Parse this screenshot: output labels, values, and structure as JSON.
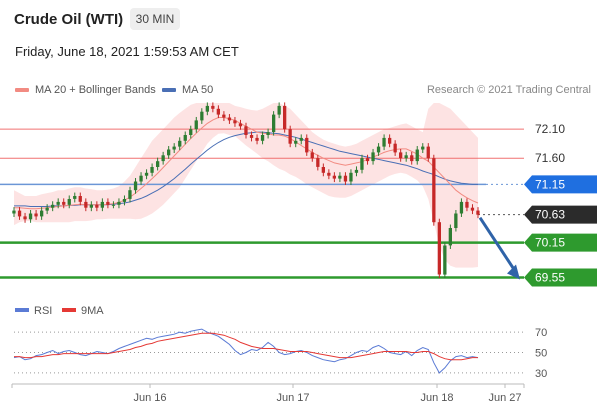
{
  "header": {
    "instrument": "Crude Oil (WTI)",
    "timeframe": "30 MIN",
    "datetime": "Friday, June 18, 2021 1:59:53 AM CET",
    "credit": "Research © 2021 Trading Central"
  },
  "legend": {
    "ma20_label": "MA 20 + Bollinger Bands",
    "ma50_label": "MA 50",
    "rsi_label": "RSI",
    "ma9_label": "9MA"
  },
  "colors": {
    "up": "#2e7d32",
    "down": "#c62828",
    "ma20": "#f28b82",
    "band_fill": "#fde3e3",
    "ma50": "#4a6fb5",
    "red_level": "#f07070",
    "blue_level": "#6b96d6",
    "green_level": "#2e9a2e",
    "arrow": "#2f63a8",
    "rsi": "#5b7bd5",
    "rsi_ma": "#e53935"
  },
  "chart_data": [
    {
      "type": "candlestick",
      "title": "Crude Oil (WTI)",
      "timeframe": "30 MIN",
      "ylim": [
        69.3,
        72.55
      ],
      "x_labels": [
        "Jun 16",
        "Jun 17",
        "Jun 18",
        "Jun 27"
      ],
      "levels": [
        {
          "label": "72.10",
          "value": 72.1,
          "kind": "resistance"
        },
        {
          "label": "71.60",
          "value": 71.6,
          "kind": "resistance"
        },
        {
          "label": "71.15",
          "value": 71.15,
          "kind": "pivot"
        },
        {
          "label": "70.63",
          "value": 70.63,
          "kind": "last"
        },
        {
          "label": "70.15",
          "value": 70.15,
          "kind": "support"
        },
        {
          "label": "69.55",
          "value": 69.55,
          "kind": "support"
        }
      ],
      "close_series": [
        70.7,
        70.6,
        70.55,
        70.65,
        70.6,
        70.7,
        70.75,
        70.8,
        70.85,
        70.8,
        70.9,
        70.95,
        70.85,
        70.75,
        70.8,
        70.75,
        70.85,
        70.8,
        70.8,
        70.85,
        70.9,
        71.05,
        71.2,
        71.3,
        71.35,
        71.45,
        71.55,
        71.65,
        71.75,
        71.8,
        71.9,
        72.0,
        72.1,
        72.25,
        72.4,
        72.5,
        72.45,
        72.35,
        72.3,
        72.25,
        72.2,
        72.15,
        72.0,
        71.95,
        71.9,
        72.0,
        72.05,
        72.35,
        72.5,
        72.1,
        71.85,
        71.9,
        71.95,
        71.7,
        71.6,
        71.45,
        71.35,
        71.3,
        71.25,
        71.3,
        71.2,
        71.35,
        71.4,
        71.6,
        71.55,
        71.7,
        71.8,
        71.95,
        71.85,
        71.7,
        71.6,
        71.65,
        71.55,
        71.75,
        71.8,
        71.6,
        70.5,
        69.6,
        70.1,
        70.4,
        70.65,
        70.85,
        70.75,
        70.7,
        70.63
      ],
      "ma20_series": [
        70.75,
        70.75,
        70.74,
        70.73,
        70.73,
        70.74,
        70.75,
        70.76,
        70.77,
        70.78,
        70.79,
        70.8,
        70.81,
        70.8,
        70.8,
        70.8,
        70.8,
        70.81,
        70.82,
        70.84,
        70.88,
        70.93,
        71.0,
        71.08,
        71.16,
        71.25,
        71.34,
        71.44,
        71.54,
        71.64,
        71.74,
        71.84,
        71.94,
        72.03,
        72.12,
        72.2,
        72.26,
        72.3,
        72.3,
        72.28,
        72.25,
        72.2,
        72.15,
        72.1,
        72.05,
        72.03,
        72.02,
        72.0,
        72.0,
        71.98,
        71.94,
        71.88,
        71.82,
        71.76,
        71.7,
        71.65,
        71.6,
        71.56,
        71.52,
        71.5,
        71.48,
        71.5,
        71.52,
        71.54,
        71.58,
        71.62,
        71.66,
        71.7,
        71.73,
        71.75,
        71.76,
        71.76,
        71.72,
        71.67,
        71.6,
        71.55,
        71.45,
        71.35,
        71.25,
        71.15,
        71.05,
        70.98,
        70.92,
        70.87,
        70.83
      ],
      "ma50_series": [
        70.78,
        70.78,
        70.78,
        70.77,
        70.77,
        70.77,
        70.77,
        70.78,
        70.78,
        70.78,
        70.79,
        70.79,
        70.8,
        70.8,
        70.8,
        70.8,
        70.8,
        70.8,
        70.81,
        70.82,
        70.83,
        70.85,
        70.88,
        70.91,
        70.95,
        71.0,
        71.05,
        71.11,
        71.18,
        71.25,
        71.33,
        71.41,
        71.5,
        71.58,
        71.66,
        71.74,
        71.81,
        71.87,
        71.92,
        71.96,
        71.99,
        72.01,
        72.03,
        72.04,
        72.05,
        72.05,
        72.04,
        72.03,
        72.02,
        72.0,
        71.98,
        71.96,
        71.93,
        71.9,
        71.87,
        71.84,
        71.81,
        71.78,
        71.75,
        71.72,
        71.7,
        71.68,
        71.66,
        71.64,
        71.62,
        71.6,
        71.58,
        71.56,
        71.54,
        71.52,
        71.5,
        71.48,
        71.45,
        71.42,
        71.38,
        71.35,
        71.32,
        71.28,
        71.24,
        71.21,
        71.19,
        71.17,
        71.16,
        71.15,
        71.15
      ],
      "band_upper": [
        71.05,
        71.0,
        70.95,
        70.95,
        70.95,
        70.98,
        71.0,
        71.02,
        71.05,
        71.05,
        71.08,
        71.1,
        71.1,
        71.08,
        71.07,
        71.05,
        71.05,
        71.06,
        71.08,
        71.12,
        71.2,
        71.3,
        71.45,
        71.6,
        71.75,
        71.9,
        72.0,
        72.1,
        72.2,
        72.3,
        72.38,
        72.45,
        72.52,
        72.55,
        72.55,
        72.55,
        72.55,
        72.55,
        72.55,
        72.55,
        72.5,
        72.48,
        72.45,
        72.43,
        72.42,
        72.45,
        72.5,
        72.55,
        72.55,
        72.5,
        72.45,
        72.35,
        72.25,
        72.15,
        72.05,
        71.98,
        71.92,
        71.88,
        71.85,
        71.82,
        71.8,
        71.82,
        71.85,
        71.9,
        71.95,
        72.0,
        72.05,
        72.1,
        72.12,
        72.15,
        72.18,
        72.2,
        72.15,
        72.1,
        72.05,
        72.45,
        72.55,
        72.55,
        72.5,
        72.45,
        72.35,
        72.25,
        72.15,
        72.05,
        71.95
      ],
      "band_lower": [
        70.45,
        70.5,
        70.52,
        70.52,
        70.5,
        70.5,
        70.5,
        70.5,
        70.5,
        70.5,
        70.5,
        70.52,
        70.52,
        70.52,
        70.53,
        70.55,
        70.55,
        70.56,
        70.56,
        70.56,
        70.56,
        70.56,
        70.55,
        70.56,
        70.6,
        70.65,
        70.72,
        70.8,
        70.9,
        71.0,
        71.1,
        71.25,
        71.4,
        71.55,
        71.7,
        71.85,
        71.95,
        72.02,
        72.03,
        72.0,
        71.98,
        71.9,
        71.82,
        71.75,
        71.68,
        71.6,
        71.55,
        71.48,
        71.42,
        71.38,
        71.32,
        71.28,
        71.22,
        71.15,
        71.1,
        71.05,
        71.0,
        70.95,
        70.93,
        70.92,
        70.92,
        70.95,
        71.0,
        71.05,
        71.1,
        71.15,
        71.2,
        71.25,
        71.3,
        71.33,
        71.35,
        71.33,
        71.28,
        71.22,
        71.12,
        70.9,
        70.5,
        70.1,
        69.85,
        69.75,
        69.72,
        69.72,
        69.72,
        69.72,
        69.73
      ]
    },
    {
      "type": "line",
      "title": "RSI",
      "ylim": [
        25,
        80
      ],
      "y_ticks": [
        70,
        50,
        30
      ],
      "series": [
        {
          "name": "RSI",
          "values": [
            45,
            46,
            43,
            44,
            47,
            48,
            50,
            52,
            49,
            51,
            52,
            50,
            48,
            47,
            49,
            51,
            50,
            49,
            51,
            54,
            56,
            58,
            60,
            62,
            64,
            63,
            65,
            66,
            67,
            68,
            70,
            69,
            71,
            72,
            73,
            70,
            68,
            66,
            62,
            58,
            52,
            48,
            50,
            53,
            52,
            55,
            60,
            56,
            50,
            48,
            49,
            51,
            52,
            50,
            47,
            45,
            43,
            42,
            41,
            43,
            44,
            47,
            50,
            52,
            51,
            55,
            57,
            54,
            50,
            49,
            48,
            51,
            47,
            52,
            55,
            53,
            40,
            30,
            35,
            42,
            46,
            47,
            45,
            46,
            45
          ]
        },
        {
          "name": "9MA",
          "values": [
            46,
            46,
            45,
            45,
            46,
            46,
            47,
            48,
            48,
            49,
            49,
            49,
            49,
            49,
            49,
            49,
            49,
            49,
            50,
            51,
            52,
            53,
            55,
            56,
            58,
            59,
            61,
            62,
            63,
            64,
            65,
            66,
            67,
            68,
            69,
            69,
            69,
            68,
            67,
            65,
            63,
            60,
            58,
            56,
            55,
            54,
            54,
            54,
            53,
            52,
            51,
            51,
            51,
            51,
            50,
            49,
            48,
            47,
            46,
            45,
            45,
            45,
            46,
            47,
            48,
            49,
            50,
            51,
            51,
            51,
            51,
            51,
            50,
            50,
            51,
            51,
            49,
            46,
            44,
            43,
            43,
            43,
            44,
            45,
            45
          ]
        }
      ]
    }
  ]
}
